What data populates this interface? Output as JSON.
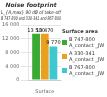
{
  "chart_data": {
    "type": "bar",
    "title": "Noise footprint",
    "subtitle": [
      "L_{A,max} 90 dB of take-off",
      "B 747-800 and 330-341 and 867-800"
    ],
    "xlabel": "Surface",
    "categories": [
      null
    ],
    "series": [
      {
        "name": "B 747-800\nA_contact _JW",
        "color": "#3aaa35",
        "values": [
          13500
        ],
        "value_labels": [
          "13 500"
        ]
      },
      {
        "name": "A 330-341\nA_contact _JW",
        "color": "#e8a020",
        "values": [
          13470
        ],
        "value_labels": [
          "13 470"
        ]
      },
      {
        "name": "B 767-800\nA_contact _JW",
        "color": "#40c8d0",
        "values": [
          9770
        ],
        "value_labels": [
          "9 770"
        ]
      }
    ],
    "legend_title": "Surface area",
    "legend": "right",
    "data_labels": true,
    "grid": true,
    "ylim": [
      0,
      16000
    ],
    "yticks": [
      0,
      {
        "value": 4000,
        "label": "4 000"
      },
      {
        "value": 8000,
        "label": "8 000"
      },
      {
        "value": 12000,
        "label": "12 000"
      },
      {
        "value": 16000,
        "label": "16 000"
      }
    ]
  }
}
